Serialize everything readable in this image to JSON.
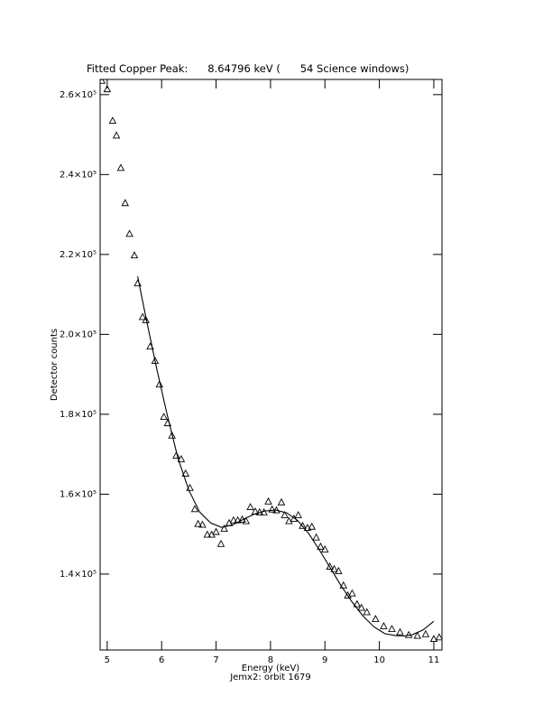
{
  "chart_data": {
    "type": "scatter",
    "title": "Fitted Copper Peak:      8.64796 keV (      54 Science windows)",
    "x_label": "Energy (keV)",
    "subtitle": "Jemx2: orbit 1679",
    "y_label": "Detector counts",
    "xlim": [
      4.87,
      11.15
    ],
    "ylim": [
      121000,
      263800
    ],
    "xticks": [
      5,
      6,
      7,
      8,
      9,
      10,
      11
    ],
    "yticks": [
      {
        "value": 140000,
        "label": "1.4×10⁵"
      },
      {
        "value": 160000,
        "label": "1.6×10⁵"
      },
      {
        "value": 180000,
        "label": "1.8×10⁵"
      },
      {
        "value": 200000,
        "label": "2.0×10⁵"
      },
      {
        "value": 220000,
        "label": "2.2×10⁵"
      },
      {
        "value": 240000,
        "label": "2.4×10⁵"
      },
      {
        "value": 260000,
        "label": "2.6×10⁵"
      }
    ],
    "series": [
      {
        "style": "triangle",
        "color": "#000000",
        "x": [
          4.9,
          5.0,
          5.1,
          5.17,
          5.25,
          5.33,
          5.41,
          5.5,
          5.56,
          5.65,
          5.71,
          5.79,
          5.88,
          5.96,
          6.04,
          6.11,
          6.19,
          6.27,
          6.36,
          6.44,
          6.52,
          6.61,
          6.67,
          6.75,
          6.84,
          6.92,
          7.0,
          7.09,
          7.15,
          7.24,
          7.32,
          7.4,
          7.48,
          7.55,
          7.63,
          7.72,
          7.8,
          7.88,
          7.96,
          8.03,
          8.11,
          8.2,
          8.26,
          8.34,
          8.43,
          8.51,
          8.59,
          8.68,
          8.76,
          8.84,
          8.92,
          9.0,
          9.09,
          9.17,
          9.25,
          9.34,
          9.42,
          9.5,
          9.59,
          9.67,
          9.77,
          9.93,
          10.08,
          10.23,
          10.38,
          10.54,
          10.7,
          10.85,
          11.0,
          11.1
        ],
        "values": [
          263500,
          261400,
          253500,
          249800,
          241700,
          232900,
          225200,
          219800,
          212800,
          204400,
          203600,
          197000,
          193400,
          187500,
          179400,
          177800,
          174700,
          169700,
          168800,
          165200,
          161600,
          156300,
          152600,
          152400,
          149900,
          149900,
          150600,
          147600,
          151400,
          152800,
          153500,
          153500,
          153700,
          153300,
          156800,
          155700,
          155500,
          155500,
          158200,
          156200,
          156000,
          158000,
          154800,
          153300,
          153900,
          154800,
          152100,
          151600,
          151900,
          149200,
          146900,
          146200,
          141900,
          141300,
          140800,
          137200,
          134700,
          135200,
          132500,
          131600,
          130500,
          128800,
          127000,
          126300,
          125500,
          124800,
          124600,
          125000,
          123800,
          124200
        ]
      },
      {
        "style": "line",
        "color": "#000000",
        "x": [
          5.56,
          5.7,
          5.9,
          6.1,
          6.3,
          6.5,
          6.7,
          6.9,
          7.1,
          7.3,
          7.5,
          7.7,
          7.9,
          8.1,
          8.3,
          8.5,
          8.7,
          8.9,
          9.1,
          9.3,
          9.5,
          9.7,
          9.9,
          10.1,
          10.3,
          10.45,
          10.6,
          10.8,
          11.0
        ],
        "values": [
          214500,
          205000,
          192000,
          180000,
          169000,
          161000,
          155500,
          152800,
          151700,
          152300,
          153700,
          155000,
          155800,
          156000,
          155300,
          153400,
          150200,
          146000,
          141500,
          137000,
          133000,
          129500,
          126800,
          125100,
          124600,
          124500,
          124800,
          126000,
          128200
        ]
      }
    ]
  }
}
